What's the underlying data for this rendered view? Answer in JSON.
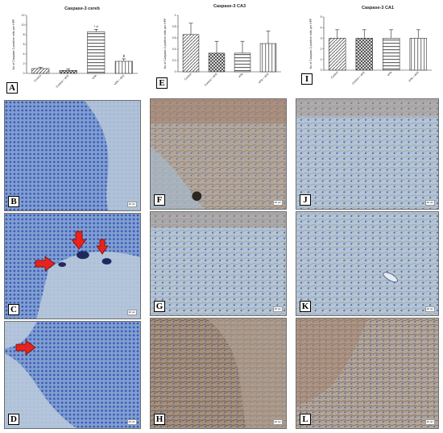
{
  "figure": {
    "charts": [
      {
        "id": "A",
        "letter": "A"
      },
      {
        "id": "E",
        "letter": "E"
      },
      {
        "id": "I",
        "letter": "I"
      }
    ],
    "micrographs": [
      {
        "letter": "B",
        "scale": "20 um",
        "stain": "blue"
      },
      {
        "letter": "C",
        "scale": "20 um",
        "stain": "blue"
      },
      {
        "letter": "D",
        "scale": "20 um",
        "stain": "blue"
      },
      {
        "letter": "F",
        "scale": "20 um",
        "stain": "brown"
      },
      {
        "letter": "G",
        "scale": "20 um",
        "stain": "pale"
      },
      {
        "letter": "H",
        "scale": "20 um",
        "stain": "brown"
      },
      {
        "letter": "J",
        "scale": "20 um",
        "stain": "pale"
      },
      {
        "letter": "K",
        "scale": "20 um",
        "stain": "pale"
      },
      {
        "letter": "L",
        "scale": "20 um",
        "stain": "brown"
      }
    ],
    "arrow_color": "#e8231c",
    "arrow_annotations": [
      {
        "panel": "C",
        "count": 3
      },
      {
        "panel": "D",
        "count": 1
      }
    ]
  },
  "chart_data": [
    {
      "type": "bar",
      "panel": "A",
      "title": "Caspase-3 cereb",
      "ylabel": "No of Caspase-3 positive cells per HPF",
      "categories": [
        "Control",
        "Control + AFE",
        "VPA",
        "VPA + AFE"
      ],
      "values": [
        1,
        0.6,
        8.6,
        2.5
      ],
      "errors": [
        0.25,
        0.3,
        0.5,
        0.5
      ],
      "annotations": [
        "",
        "",
        "* #",
        "$"
      ],
      "ylim": [
        0,
        12
      ],
      "yticks": [
        0,
        2,
        4,
        6,
        8,
        10,
        12
      ],
      "error_bars": true
    },
    {
      "type": "bar",
      "panel": "E",
      "title": "Caspase-3 CA3",
      "ylabel": "No of Caspase-3 positive cells per HPF",
      "categories": [
        "Control",
        "Control + AFE",
        "VPA",
        "VPA + AFE"
      ],
      "values": [
        0.66,
        0.33,
        0.33,
        0.5
      ],
      "errors": [
        0.2,
        0.21,
        0.21,
        0.22
      ],
      "ylim": [
        0,
        1
      ],
      "yticks": [
        0,
        0.2,
        0.4,
        0.6,
        0.8,
        1.0
      ],
      "error_bars": true
    },
    {
      "type": "bar",
      "panel": "I",
      "title": "Caspase-3 CA1",
      "ylabel": "No of Caspase-3 positive cells per HPF",
      "categories": [
        "Control",
        "Control + AFE",
        "VPA",
        "VPA + AFE"
      ],
      "values": [
        3.0,
        3.0,
        3.0,
        3.0
      ],
      "errors": [
        0.8,
        0.8,
        0.8,
        0.8
      ],
      "ylim": [
        0,
        5
      ],
      "yticks": [
        0,
        1,
        2,
        3,
        4,
        5
      ],
      "error_bars": true
    }
  ]
}
